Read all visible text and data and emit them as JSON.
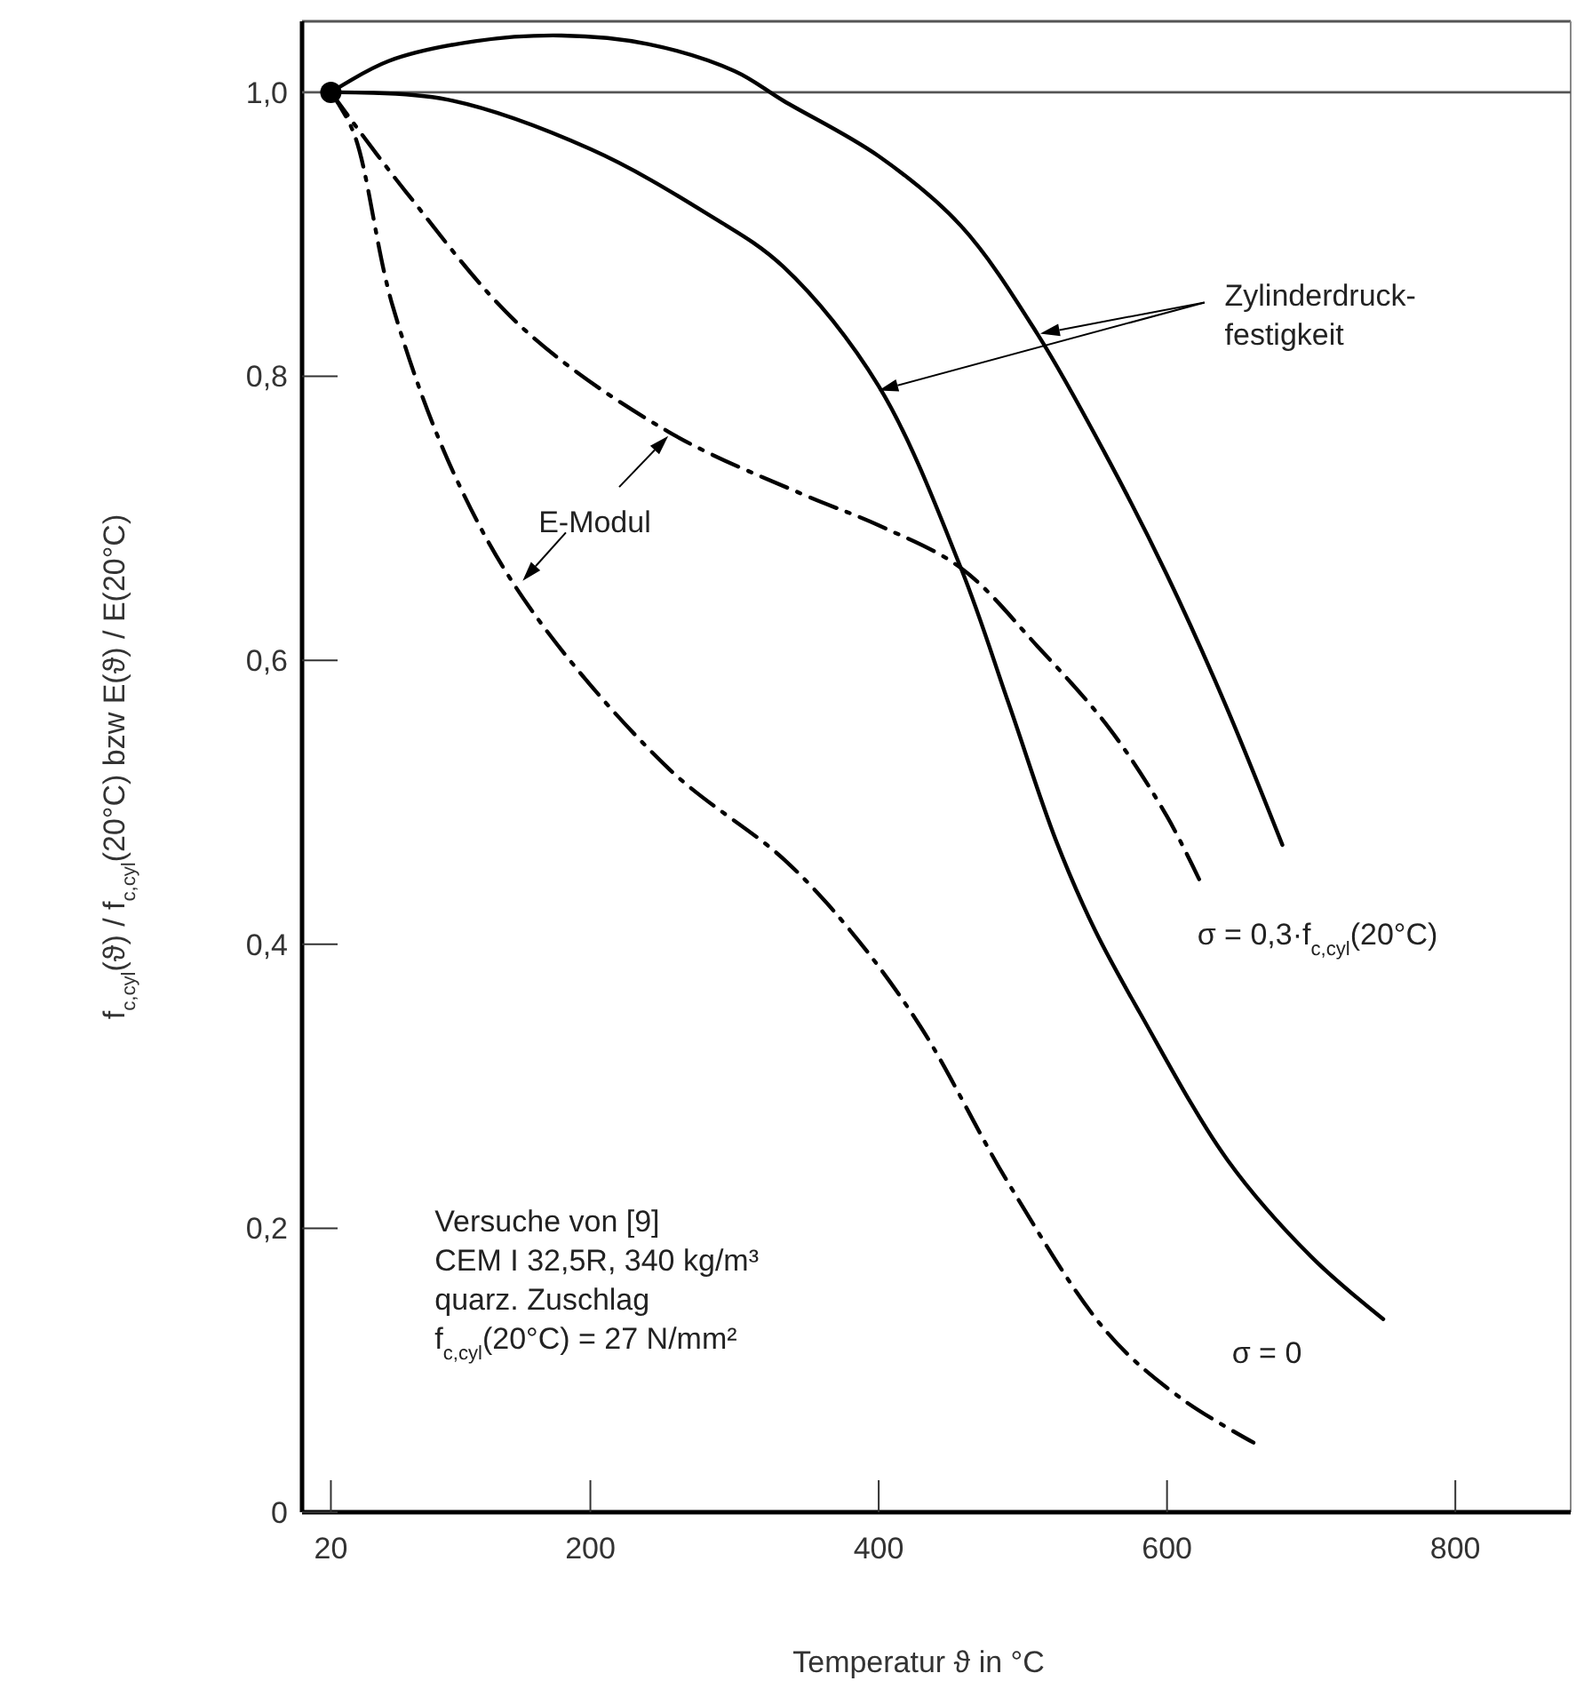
{
  "chart_data": {
    "type": "line",
    "xlabel": "Temperatur ϑ in °C",
    "ylabel": "f$_{c,cyl}$(ϑ) / f$_{c,cyl}$(20°C)   bzw   E(ϑ) / E(20°C)",
    "xlim": [
      0,
      880
    ],
    "ylim": [
      0,
      1.05
    ],
    "xticks": [
      20,
      200,
      400,
      600,
      800
    ],
    "yticks": [
      0,
      {
        "value": 0.2,
        "label": "0,2"
      },
      {
        "value": 0.4,
        "label": "0,4"
      },
      {
        "value": 0.6,
        "label": "0,6"
      },
      {
        "value": 0.8,
        "label": "0,8"
      },
      {
        "value": 1,
        "label": "1,0"
      }
    ],
    "series": [
      {
        "color": "#000000",
        "line_style": "solid",
        "x": [
          20,
          60,
          120,
          180,
          240,
          300,
          334,
          400,
          457,
          510,
          560,
          600,
          640,
          680
        ],
        "values": [
          1.0,
          1.022,
          1.036,
          1.04,
          1.034,
          1.015,
          0.994,
          0.955,
          0.906,
          0.83,
          0.74,
          0.66,
          0.57,
          0.47
        ]
      },
      {
        "color": "#000000",
        "line_style": "solid",
        "x": [
          20,
          100,
          200,
          280,
          334,
          400,
          457,
          490,
          523,
          550,
          581,
          642,
          700,
          750
        ],
        "values": [
          1.0,
          0.995,
          0.96,
          0.915,
          0.877,
          0.793,
          0.665,
          0.57,
          0.473,
          0.41,
          0.352,
          0.248,
          0.18,
          0.136
        ]
      },
      {
        "color": "#000000",
        "line_style": "dashed",
        "x": [
          20,
          72,
          153,
          254,
          347,
          400,
          457,
          510,
          560,
          600,
          625
        ],
        "values": [
          1.0,
          0.93,
          0.834,
          0.761,
          0.717,
          0.695,
          0.665,
          0.61,
          0.552,
          0.49,
          0.44
        ]
      },
      {
        "color": "#000000",
        "line_style": "dashed",
        "x": [
          20,
          36,
          63,
          106,
          158,
          254,
          334,
          380,
          429,
          491,
          559,
          610,
          660
        ],
        "values": [
          1.0,
          0.971,
          0.849,
          0.73,
          0.637,
          0.524,
          0.46,
          0.41,
          0.342,
          0.23,
          0.126,
          0.08,
          0.049
        ]
      },
      {
        "type": "scatter",
        "color": "#000000",
        "marker": "circle",
        "x": [
          20
        ],
        "values": [
          1.0
        ]
      }
    ],
    "ref_lines": [
      {
        "axis": "y",
        "value": 1,
        "color": "#555555"
      }
    ],
    "annotations": [
      "Zylinderdruck-\nfestigkeit",
      "E-Modul",
      "σ = 0,3·f$_{c,cyl}$(20°C)",
      "σ = 0",
      "Versuche von [9]\nCEM I 32,5R, 340 kg/m³\nquarz. Zuschlag\nf$_{c,cyl}$(20°C) = 27 N/mm²"
    ]
  }
}
